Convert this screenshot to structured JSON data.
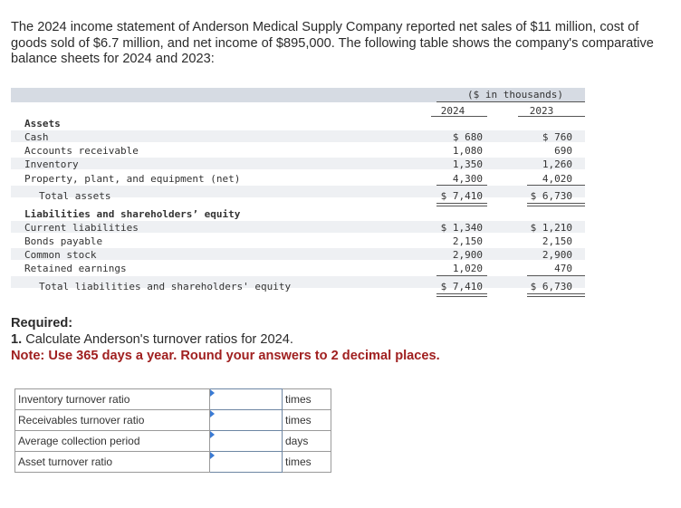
{
  "intro": "The 2024 income statement of Anderson Medical Supply Company reported net sales of $11 million, cost of goods sold of $6.7 million, and net income of $895,000. The following table shows the company's comparative balance sheets for 2024 and 2023:",
  "balance_sheet": {
    "units": "($ in thousands)",
    "years": [
      "2024",
      "2023"
    ],
    "assets_heading": "Assets",
    "rows": [
      {
        "label": "Cash",
        "v2024": "$ 680",
        "v2023": "$ 760"
      },
      {
        "label": "Accounts receivable",
        "v2024": "1,080",
        "v2023": "690"
      },
      {
        "label": "Inventory",
        "v2024": "1,350",
        "v2023": "1,260"
      },
      {
        "label": "Property, plant, and equipment (net)",
        "v2024": "4,300",
        "v2023": "4,020"
      },
      {
        "label": "Total assets",
        "v2024": "$ 7,410",
        "v2023": "$ 6,730"
      },
      {
        "label": "Liabilities and shareholders’ equity",
        "v2024": "",
        "v2023": ""
      },
      {
        "label": "Current liabilities",
        "v2024": "$ 1,340",
        "v2023": "$ 1,210"
      },
      {
        "label": "Bonds payable",
        "v2024": "2,150",
        "v2023": "2,150"
      },
      {
        "label": "Common stock",
        "v2024": "2,900",
        "v2023": "2,900"
      },
      {
        "label": "Retained earnings",
        "v2024": "1,020",
        "v2023": "470"
      },
      {
        "label": "Total liabilities and shareholders' equity",
        "v2024": "$ 7,410",
        "v2023": "$ 6,730"
      }
    ]
  },
  "required": {
    "title": "Required:",
    "number": "1.",
    "text": "Calculate Anderson's turnover ratios for 2024.",
    "note": "Note: Use 365 days a year. Round your answers to 2 decimal places."
  },
  "answers": [
    {
      "label": "Inventory turnover ratio",
      "value": "",
      "unit": "times"
    },
    {
      "label": "Receivables turnover ratio",
      "value": "",
      "unit": "times"
    },
    {
      "label": "Average collection period",
      "value": "",
      "unit": "days"
    },
    {
      "label": "Asset turnover ratio",
      "value": "",
      "unit": "times"
    }
  ]
}
